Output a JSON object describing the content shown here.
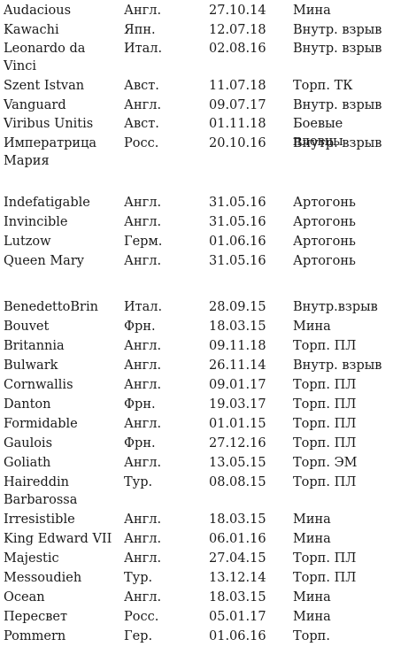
{
  "groups": [
    {
      "rows": [
        {
          "name": "Audacious",
          "country": "Англ.",
          "date": "27.10.14",
          "cause": "Мина"
        },
        {
          "name": "Kawachi",
          "country": "Япн.",
          "date": "12.07.18",
          "cause": "Внутр. взрыв"
        },
        {
          "name": "Leonardo da Vinci",
          "country": "Итал.",
          "date": "02.08.16",
          "cause": "Внутр. взрыв"
        },
        {
          "name": "Szent Istvan",
          "country": "Авст.",
          "date": "11.07.18",
          "cause": "Торп. ТК"
        },
        {
          "name": "Vanguard",
          "country": "Англ.",
          "date": "09.07.17",
          "cause": "Внутр. взрыв"
        },
        {
          "name": "Viribus Unitis",
          "country": "Авст.",
          "date": "01.11.18",
          "cause": "Боевые пловцы"
        },
        {
          "name": "Императрица Мария",
          "country": "Росс.",
          "date": "20.10.16",
          "cause": "Внутр. взрыв"
        }
      ]
    },
    {
      "rows": [
        {
          "name": "Indefatigable",
          "country": "Англ.",
          "date": "31.05.16",
          "cause": "Артогонь"
        },
        {
          "name": "Invincible",
          "country": "Англ.",
          "date": "31.05.16",
          "cause": "Артогонь"
        },
        {
          "name": "Lutzow",
          "country": "Герм.",
          "date": "01.06.16",
          "cause": "Артогонь"
        },
        {
          "name": "Queen Mary",
          "country": "Англ.",
          "date": "31.05.16",
          "cause": "Артогонь"
        }
      ]
    },
    {
      "rows": [
        {
          "name": "BenedettoBrin",
          "country": "Итал.",
          "date": "28.09.15",
          "cause": "Внутр.взрыв"
        },
        {
          "name": "Bouvet",
          "country": "Фрн.",
          "date": "18.03.15",
          "cause": "Мина"
        },
        {
          "name": "Britannia",
          "country": "Англ.",
          "date": "09.11.18",
          "cause": "Торп. ПЛ"
        },
        {
          "name": "Bulwark",
          "country": "Англ.",
          "date": "26.11.14",
          "cause": "Внутр. взрыв"
        },
        {
          "name": "Cornwallis",
          "country": "Англ.",
          "date": "09.01.17",
          "cause": "Торп. ПЛ"
        },
        {
          "name": "Danton",
          "country": "Фрн.",
          "date": "19.03.17",
          "cause": "Торп. ПЛ"
        },
        {
          "name": "Formidable",
          "country": "Англ.",
          "date": "01.01.15",
          "cause": "Торп. ПЛ"
        },
        {
          "name": "Gaulois",
          "country": "Фрн.",
          "date": "27.12.16",
          "cause": "Торп. ПЛ"
        },
        {
          "name": "Goliath",
          "country": "Англ.",
          "date": "13.05.15",
          "cause": "Торп. ЭМ"
        },
        {
          "name": "Haireddin Barbarossa",
          "country": "Тур.",
          "date": "08.08.15",
          "cause": "Торп. ПЛ"
        },
        {
          "name": "Irresistible",
          "country": "Англ.",
          "date": "18.03.15",
          "cause": "Мина"
        },
        {
          "name": "King Edward VII",
          "country": "Англ.",
          "date": "06.01.16",
          "cause": "Мина"
        },
        {
          "name": "Majestic",
          "country": "Англ.",
          "date": "27.04.15",
          "cause": "Торп. ПЛ"
        },
        {
          "name": "Messoudieh",
          "country": "Тур.",
          "date": "13.12.14",
          "cause": "Торп. ПЛ"
        },
        {
          "name": "Ocean",
          "country": "Англ.",
          "date": "18.03.15",
          "cause": "Мина"
        },
        {
          "name": "Пересвет",
          "country": "Росс.",
          "date": "05.01.17",
          "cause": "Мина"
        },
        {
          "name": "Pommern",
          "country": "Гер.",
          "date": "01.06.16",
          "cause": "Торп."
        }
      ]
    }
  ]
}
